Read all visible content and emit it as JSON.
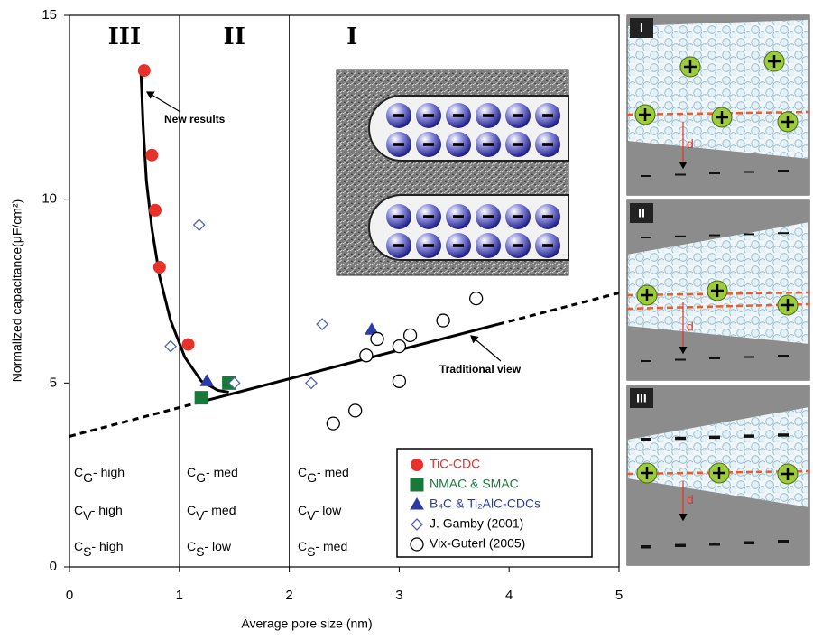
{
  "chart_data": {
    "type": "scatter",
    "x_label": "Average pore size (nm)",
    "y_label": "Normalized capacitance(μF/cm²)",
    "xlim": [
      0,
      5
    ],
    "ylim": [
      0,
      15
    ],
    "xticks": [
      0,
      1,
      2,
      3,
      4,
      5
    ],
    "yticks": [
      0,
      5,
      10,
      15
    ],
    "region_dividers": [
      1,
      2
    ],
    "regions": [
      "III",
      "II",
      "I"
    ],
    "series": [
      {
        "name": "TiC-CDC",
        "color": "#e8312a",
        "marker": "circle",
        "filled": true,
        "x": [
          0.68,
          0.75,
          0.78,
          0.82,
          1.08
        ],
        "values": [
          13.5,
          11.2,
          9.7,
          8.15,
          6.05
        ]
      },
      {
        "name": "NMAC  & SMAC",
        "color": "#177a3a",
        "marker": "square",
        "filled": true,
        "x": [
          1.2,
          1.45
        ],
        "values": [
          4.6,
          5.0
        ]
      },
      {
        "name": "B₄C & Ti₂AlC-CDCs",
        "color": "#2a3aa8",
        "marker": "triangle",
        "filled": true,
        "x": [
          1.25,
          2.75
        ],
        "values": [
          5.05,
          6.45
        ]
      },
      {
        "name": "J. Gamby (2001)",
        "color": "#5560b0",
        "marker": "diamond",
        "filled": false,
        "x": [
          0.92,
          1.18,
          1.5,
          2.2,
          2.3
        ],
        "values": [
          6.0,
          9.3,
          5.0,
          5.0,
          6.6
        ]
      },
      {
        "name": "Vix-Guterl (2005)",
        "color": "#000000",
        "marker": "circle",
        "filled": false,
        "x": [
          2.4,
          2.6,
          2.7,
          2.8,
          3.0,
          3.0,
          3.1,
          3.4,
          3.7
        ],
        "values": [
          3.9,
          4.25,
          5.75,
          6.2,
          6.0,
          5.05,
          6.3,
          6.7,
          7.3
        ]
      }
    ],
    "trend_lines": [
      {
        "style": "dashed",
        "x": [
          0,
          1.2
        ],
        "values": [
          3.55,
          4.49
        ]
      },
      {
        "style": "solid",
        "x": [
          1.2,
          3.9
        ],
        "values": [
          4.49,
          6.6
        ]
      },
      {
        "style": "dashed",
        "x": [
          3.9,
          5
        ],
        "values": [
          6.6,
          7.45
        ]
      },
      {
        "style": "solid",
        "x": [
          0.65,
          0.67,
          0.7,
          0.75,
          0.82,
          0.92,
          1.05,
          1.2,
          1.35,
          1.45
        ],
        "values": [
          13.5,
          12.0,
          10.5,
          9.2,
          7.9,
          6.7,
          5.7,
          5.05,
          4.8,
          4.75
        ]
      }
    ],
    "annotations": [
      "New results",
      "Traditional view"
    ],
    "conditions": [
      [
        {
          "symbol": "C",
          "sub": "G",
          "text": "- high"
        },
        {
          "symbol": "C",
          "sub": "V",
          "text": "- high"
        },
        {
          "symbol": "C",
          "sub": "S",
          "text": "- high"
        }
      ],
      [
        {
          "symbol": "C",
          "sub": "G",
          "text": "- med"
        },
        {
          "symbol": "C",
          "sub": "V",
          "text": "- med"
        },
        {
          "symbol": "C",
          "sub": "S",
          "text": "- low"
        }
      ],
      [
        {
          "symbol": "C",
          "sub": "G",
          "text": "- med"
        },
        {
          "symbol": "C",
          "sub": "V",
          "text": "- low"
        },
        {
          "symbol": "C",
          "sub": "S",
          "text": "- med"
        }
      ]
    ],
    "panels": [
      {
        "label": "I",
        "gap": "d"
      },
      {
        "label": "II",
        "gap": "d"
      },
      {
        "label": "III",
        "gap": "d"
      }
    ]
  }
}
